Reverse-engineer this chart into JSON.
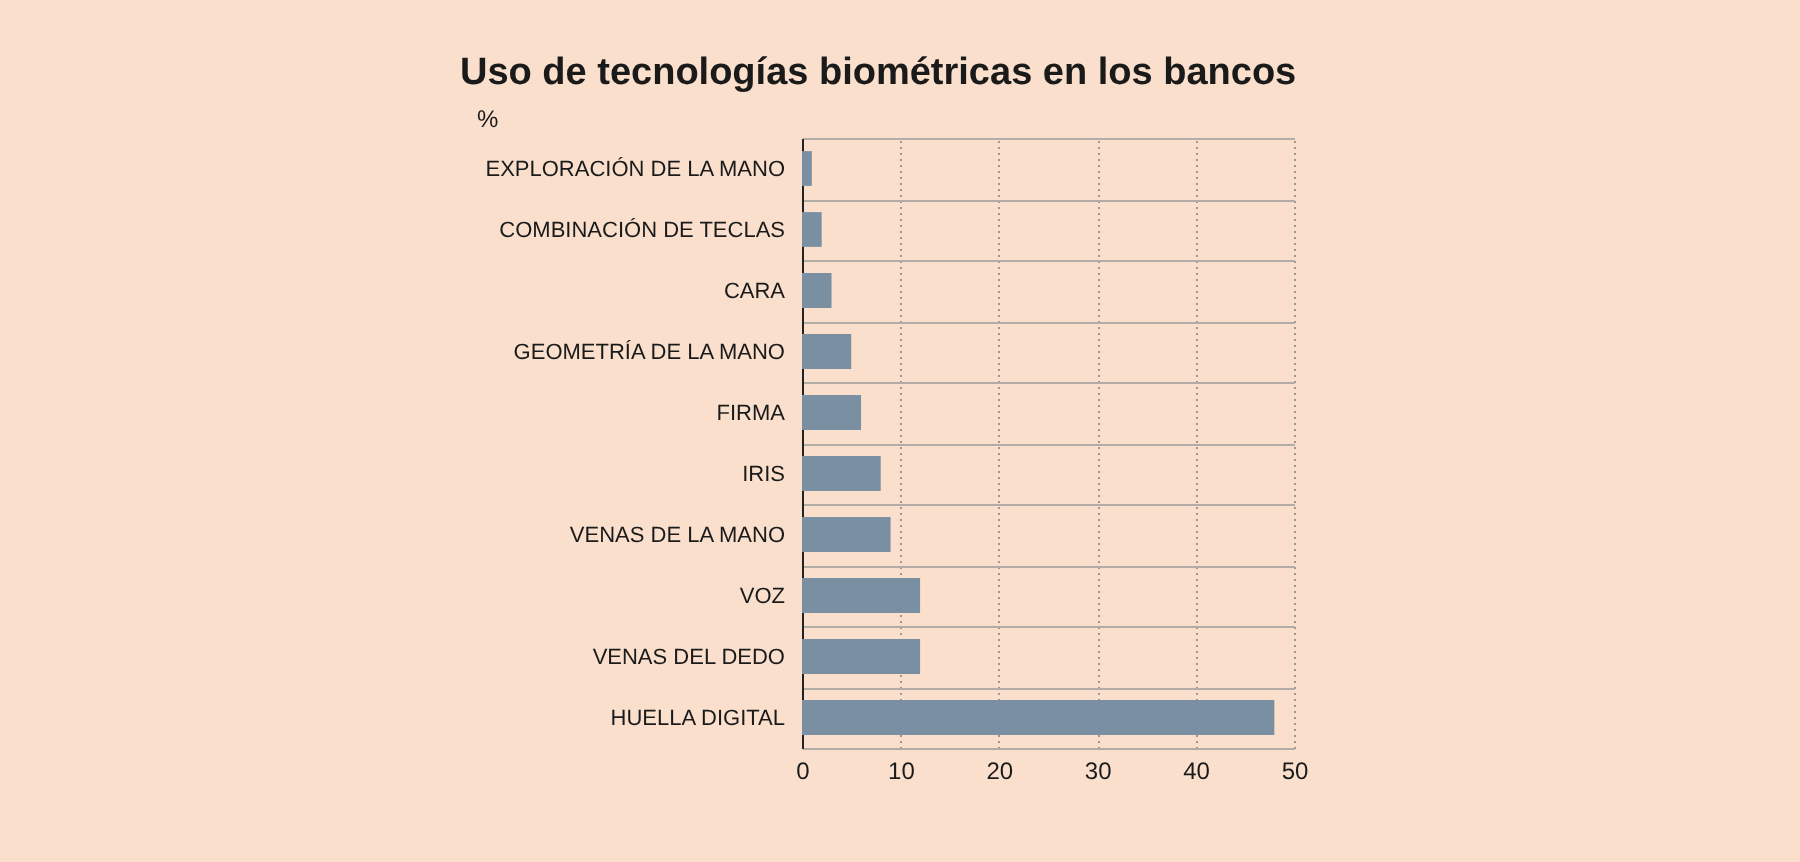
{
  "chart_data": {
    "type": "bar",
    "orientation": "horizontal",
    "title": "Uso de tecnologías biométricas en los bancos",
    "xlabel": "%",
    "categories": [
      "EXPLORACIÓN DE LA MANO",
      "COMBINACIÓN DE TECLAS",
      "CARA",
      "GEOMETRÍA DE LA MANO",
      "FIRMA",
      "IRIS",
      "VENAS DE LA MANO",
      "VOZ",
      "VENAS DEL DEDO",
      "HUELLA DIGITAL"
    ],
    "values": [
      1,
      2,
      3,
      5,
      6,
      8,
      9,
      12,
      12,
      48
    ],
    "color": "#7b8fa2",
    "xlim": [
      0,
      50
    ],
    "xticks": [
      0,
      10,
      20,
      30,
      40,
      50
    ],
    "grid": true
  }
}
